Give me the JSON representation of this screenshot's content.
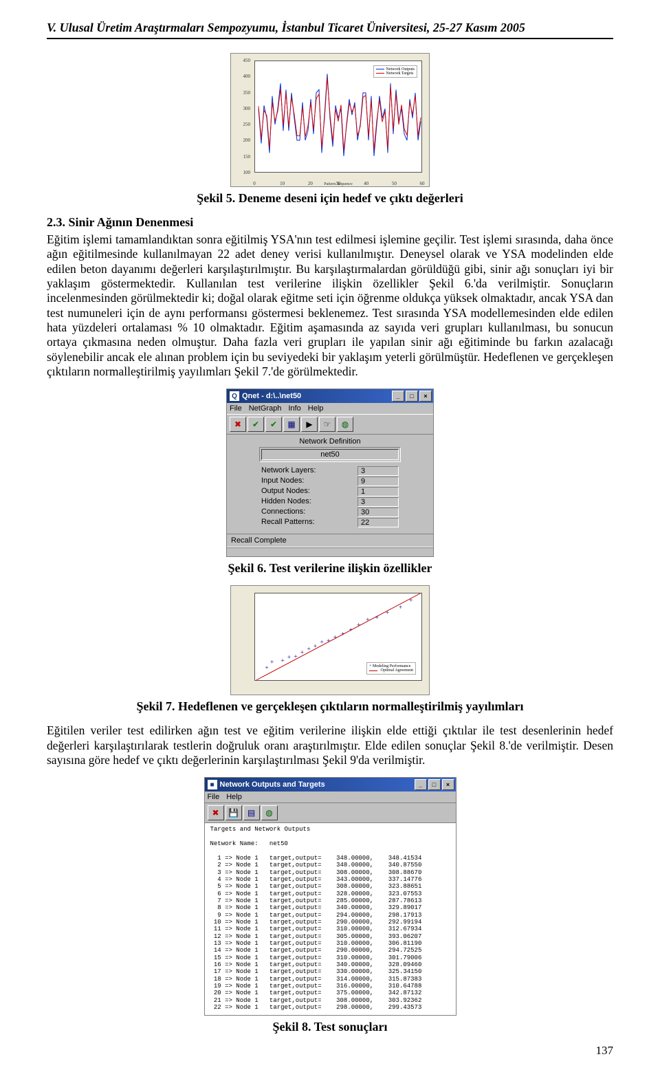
{
  "header": "V. Ulusal Üretim Araştırmaları Sempozyumu, İstanbul Ticaret Üniversitesi, 25-27 Kasım 2005",
  "page_number": "137",
  "fig5": {
    "caption": "Şekil 5. Deneme deseni için hedef ve çıktı değerleri",
    "legend": {
      "output": "Network Outputs",
      "target": "Network Targets"
    },
    "colors": {
      "output": "#002ad1",
      "target": "#d10202",
      "bg": "#ece9d8",
      "plot_bg": "#ffffff",
      "border": "#555555"
    },
    "xlabel": "Pattern Sequence",
    "ylim": [
      100,
      450
    ],
    "yticks": [
      100,
      150,
      200,
      250,
      300,
      350,
      400,
      450
    ],
    "xlim": [
      0,
      60
    ],
    "xticks": [
      0,
      10,
      20,
      30,
      40,
      50,
      60
    ],
    "n": 60,
    "series_output": [
      300,
      190,
      310,
      270,
      160,
      340,
      250,
      300,
      380,
      230,
      360,
      230,
      350,
      270,
      200,
      200,
      320,
      200,
      230,
      330,
      220,
      350,
      360,
      160,
      280,
      410,
      270,
      180,
      310,
      270,
      300,
      150,
      250,
      330,
      280,
      320,
      200,
      250,
      350,
      350,
      200,
      340,
      150,
      250,
      340,
      270,
      300,
      160,
      380,
      220,
      360,
      260,
      300,
      220,
      200,
      330,
      270,
      350,
      200,
      260
    ],
    "series_target": [
      308,
      205,
      295,
      278,
      176,
      320,
      260,
      292,
      362,
      248,
      350,
      244,
      335,
      282,
      214,
      214,
      305,
      212,
      246,
      318,
      234,
      332,
      346,
      178,
      268,
      398,
      282,
      196,
      298,
      260,
      312,
      168,
      244,
      318,
      290,
      310,
      214,
      244,
      336,
      342,
      214,
      326,
      168,
      262,
      328,
      258,
      292,
      176,
      370,
      234,
      348,
      250,
      312,
      236,
      216,
      320,
      282,
      340,
      214,
      272
    ]
  },
  "section23_heading": "2.3. Sinir Ağının Denenmesi",
  "para1": "Eğitim işlemi tamamlandıktan sonra eğitilmiş YSA'nın test edilmesi işlemine geçilir. Test işlemi sırasında, daha önce ağın eğitilmesinde kullanılmayan 22 adet deney verisi kullanılmıştır. Deneysel olarak ve YSA modelinden elde edilen beton dayanımı değerleri karşılaştırılmıştır. Bu karşılaştırmalardan görüldüğü gibi, sinir ağı sonuçları iyi bir yaklaşım göstermektedir. Kullanılan test verilerine ilişkin özellikler Şekil 6.'da verilmiştir. Sonuçların incelenmesinden görülmektedir ki; doğal olarak eğitme seti için öğrenme oldukça yüksek olmaktadır, ancak YSA dan test numuneleri için de aynı performansı göstermesi beklenemez. Test sırasında YSA modellemesinden elde edilen hata yüzdeleri ortalaması % 10 olmaktadır. Eğitim aşamasında az sayıda veri grupları kullanılması, bu sonucun ortaya çıkmasına neden olmuştur. Daha fazla veri grupları ile yapılan sinir ağı eğitiminde bu farkın azalacağı söylenebilir ancak ele alınan problem için bu seviyedeki bir yaklaşım yeterli görülmüştür. Hedeflenen ve gerçekleşen çıktıların normalleştirilmiş yayılımları Şekil 7.'de görülmektedir.",
  "qnet": {
    "title": "Qnet - d:\\..\\net50",
    "menu": [
      "File",
      "NetGraph",
      "Info",
      "Help"
    ],
    "toolbar_icons": [
      {
        "name": "close-icon",
        "glyph": "✖",
        "color": "#c00000"
      },
      {
        "name": "check-icon",
        "glyph": "✔",
        "color": "#008000"
      },
      {
        "name": "check2-icon",
        "glyph": "✔",
        "color": "#008000"
      },
      {
        "name": "graph-icon",
        "glyph": "▦",
        "color": "#000080"
      },
      {
        "name": "play-icon",
        "glyph": "▶",
        "color": "#000000"
      },
      {
        "name": "hand-icon",
        "glyph": "☞",
        "color": "#000000"
      },
      {
        "name": "world-icon",
        "glyph": "◍",
        "color": "#006000"
      }
    ],
    "panel_title": "Network Definition",
    "net_name": "net50",
    "rows": [
      {
        "label": "Network Layers:",
        "value": "3"
      },
      {
        "label": "Input Nodes:",
        "value": "9"
      },
      {
        "label": "Output Nodes:",
        "value": "1"
      },
      {
        "label": "Hidden Nodes:",
        "value": "3"
      },
      {
        "label": "Connections:",
        "value": "30"
      },
      {
        "label": "Recall Patterns:",
        "value": "22"
      }
    ],
    "status": "Recall Complete"
  },
  "fig6_caption": "Şekil 6. Test verilerine ilişkin özellikler",
  "fig7": {
    "caption": "Şekil 7. Hedeflenen ve gerçekleşen çıktıların normalleştirilmiş yayılımları",
    "colors": {
      "line": "#c00000",
      "marker": "#000088",
      "opt": "#c00000"
    },
    "legend": {
      "model": "Modeling Performance",
      "opt": "Optimal Agreement"
    },
    "xlim": [
      0,
      1.25
    ],
    "ylim": [
      0,
      1.25
    ],
    "points": [
      [
        0.08,
        0.18
      ],
      [
        0.12,
        0.26
      ],
      [
        0.2,
        0.28
      ],
      [
        0.25,
        0.33
      ],
      [
        0.3,
        0.34
      ],
      [
        0.35,
        0.4
      ],
      [
        0.4,
        0.45
      ],
      [
        0.45,
        0.49
      ],
      [
        0.5,
        0.55
      ],
      [
        0.55,
        0.57
      ],
      [
        0.6,
        0.62
      ],
      [
        0.66,
        0.67
      ],
      [
        0.72,
        0.73
      ],
      [
        0.78,
        0.8
      ],
      [
        0.85,
        0.87
      ],
      [
        0.92,
        0.9
      ],
      [
        1.0,
        0.97
      ],
      [
        1.1,
        1.05
      ],
      [
        1.18,
        1.15
      ]
    ]
  },
  "para2": "Eğitilen veriler test edilirken ağın test ve eğitim verilerine ilişkin elde ettiği çıktılar ile test desenlerinin hedef değerleri karşılaştırılarak testlerin doğruluk oranı araştırılmıştır. Elde edilen sonuçlar Şekil 8.'de verilmiştir. Desen sayısına göre hedef ve çıktı değerlerinin karşılaştırılması Şekil 9'da verilmiştir.",
  "outwin": {
    "title": "Network Outputs and Targets",
    "menu": [
      "File",
      "Help"
    ],
    "toolbar_icons": [
      {
        "name": "close-icon",
        "glyph": "✖",
        "color": "#c00000"
      },
      {
        "name": "save-icon",
        "glyph": "💾",
        "color": "#000000"
      },
      {
        "name": "tool1-icon",
        "glyph": "▤",
        "color": "#000080"
      },
      {
        "name": "world-icon",
        "glyph": "◍",
        "color": "#006000"
      }
    ],
    "heading1": "Targets and Network Outputs",
    "heading2": "Network Name:   net50",
    "rows": [
      {
        "n": 1,
        "t": "348.00000",
        "o": "348.41534"
      },
      {
        "n": 2,
        "t": "348.00000",
        "o": "340.87550"
      },
      {
        "n": 3,
        "t": "308.00000",
        "o": "308.88670"
      },
      {
        "n": 4,
        "t": "343.00000",
        "o": "337.14776"
      },
      {
        "n": 5,
        "t": "308.00000",
        "o": "323.88651"
      },
      {
        "n": 6,
        "t": "328.00000",
        "o": "323.07553"
      },
      {
        "n": 7,
        "t": "285.00000",
        "o": "287.78613"
      },
      {
        "n": 8,
        "t": "340.00000",
        "o": "329.89017"
      },
      {
        "n": 9,
        "t": "294.00000",
        "o": "298.17913"
      },
      {
        "n": 10,
        "t": "290.00000",
        "o": "292.99194"
      },
      {
        "n": 11,
        "t": "310.00000",
        "o": "312.67934"
      },
      {
        "n": 12,
        "t": "305.00000",
        "o": "393.06207"
      },
      {
        "n": 13,
        "t": "310.00000",
        "o": "306.81190"
      },
      {
        "n": 14,
        "t": "290.00000",
        "o": "294.72525"
      },
      {
        "n": 15,
        "t": "310.00000",
        "o": "301.79006"
      },
      {
        "n": 16,
        "t": "340.00000",
        "o": "328.09460"
      },
      {
        "n": 17,
        "t": "330.00000",
        "o": "325.34150"
      },
      {
        "n": 18,
        "t": "314.00000",
        "o": "315.87383"
      },
      {
        "n": 19,
        "t": "316.00000",
        "o": "310.64788"
      },
      {
        "n": 20,
        "t": "375.00000",
        "o": "342.87132"
      },
      {
        "n": 21,
        "t": "308.00000",
        "o": "303.92362"
      },
      {
        "n": 22,
        "t": "298.00000",
        "o": "299.43573"
      }
    ]
  },
  "fig8_caption": "Şekil 8. Test sonuçları"
}
